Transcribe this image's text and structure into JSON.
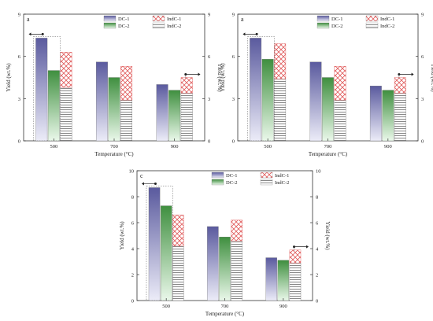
{
  "chart_data": [
    {
      "panel_label": "a",
      "type": "bar",
      "categories": [
        "500",
        "700",
        "900"
      ],
      "xlabel": "Temperature (°C)",
      "ylabel_left": "Yield (wt.%)",
      "ylabel_right": "Yield (wt.%)",
      "ylim_left": [
        0,
        9
      ],
      "ylim_right": [
        0,
        9
      ],
      "yticks_left": [
        0,
        3,
        6,
        9
      ],
      "yticks_right": [
        0,
        3,
        6,
        9
      ],
      "grid": false,
      "legend_position": "top-right",
      "series": [
        {
          "name": "DC-1",
          "axis": "left",
          "values": [
            7.3,
            5.6,
            4.0
          ]
        },
        {
          "name": "DC-2",
          "axis": "left",
          "values": [
            5.0,
            4.5,
            3.6
          ]
        },
        {
          "name": "IndC-1",
          "axis": "right",
          "values": [
            2.5,
            2.4,
            1.1
          ]
        },
        {
          "name": "IndC-2",
          "axis": "right",
          "values": [
            3.8,
            2.9,
            3.4
          ]
        }
      ],
      "stacked_right": true
    },
    {
      "panel_label": "a",
      "type": "bar",
      "categories": [
        "500",
        "700",
        "900"
      ],
      "xlabel": "Temperature (°C)",
      "ylabel_left": "Yield (wt.%)",
      "ylabel_right": "Yield (wt.%)",
      "ylim_left": [
        0,
        9
      ],
      "ylim_right": [
        0,
        9
      ],
      "yticks_left": [
        0,
        3,
        6,
        9
      ],
      "yticks_right": [
        0,
        3,
        6,
        9
      ],
      "grid": false,
      "legend_position": "top-right",
      "series": [
        {
          "name": "DC-1",
          "axis": "left",
          "values": [
            7.3,
            5.6,
            3.9
          ]
        },
        {
          "name": "DC-2",
          "axis": "left",
          "values": [
            5.8,
            4.5,
            3.6
          ]
        },
        {
          "name": "IndC-1",
          "axis": "right",
          "values": [
            2.5,
            2.4,
            1.1
          ]
        },
        {
          "name": "IndC-2",
          "axis": "right",
          "values": [
            4.4,
            2.9,
            3.4
          ]
        }
      ],
      "stacked_right": true
    },
    {
      "panel_label": "c",
      "type": "bar",
      "categories": [
        "500",
        "700",
        "900"
      ],
      "xlabel": "Temperature (°C)",
      "ylabel_left": "Yield (wt.%)",
      "ylabel_right": "Yield (wt.%)",
      "ylim_left": [
        0,
        10
      ],
      "ylim_right": [
        0,
        10
      ],
      "yticks_left": [
        0,
        2,
        4,
        6,
        8,
        10
      ],
      "yticks_right": [
        0,
        2,
        4,
        6,
        8,
        10
      ],
      "grid": false,
      "legend_position": "top-right",
      "series": [
        {
          "name": "DC-1",
          "axis": "left",
          "values": [
            8.7,
            5.7,
            3.3
          ]
        },
        {
          "name": "DC-2",
          "axis": "left",
          "values": [
            7.3,
            4.9,
            3.1
          ]
        },
        {
          "name": "IndC-1",
          "axis": "right",
          "values": [
            2.4,
            1.6,
            1.0
          ]
        },
        {
          "name": "IndC-2",
          "axis": "right",
          "values": [
            4.2,
            4.6,
            2.9
          ]
        }
      ],
      "stacked_right": true
    }
  ],
  "colors": {
    "dc1_top": "#5a5a9e",
    "dc1_bottom": "#e8e8f6",
    "dc2_top": "#3f8f3f",
    "dc2_bottom": "#e6f6e6",
    "indc1": "#e05a5a",
    "indc2": "#555555",
    "axis": "#333333"
  }
}
